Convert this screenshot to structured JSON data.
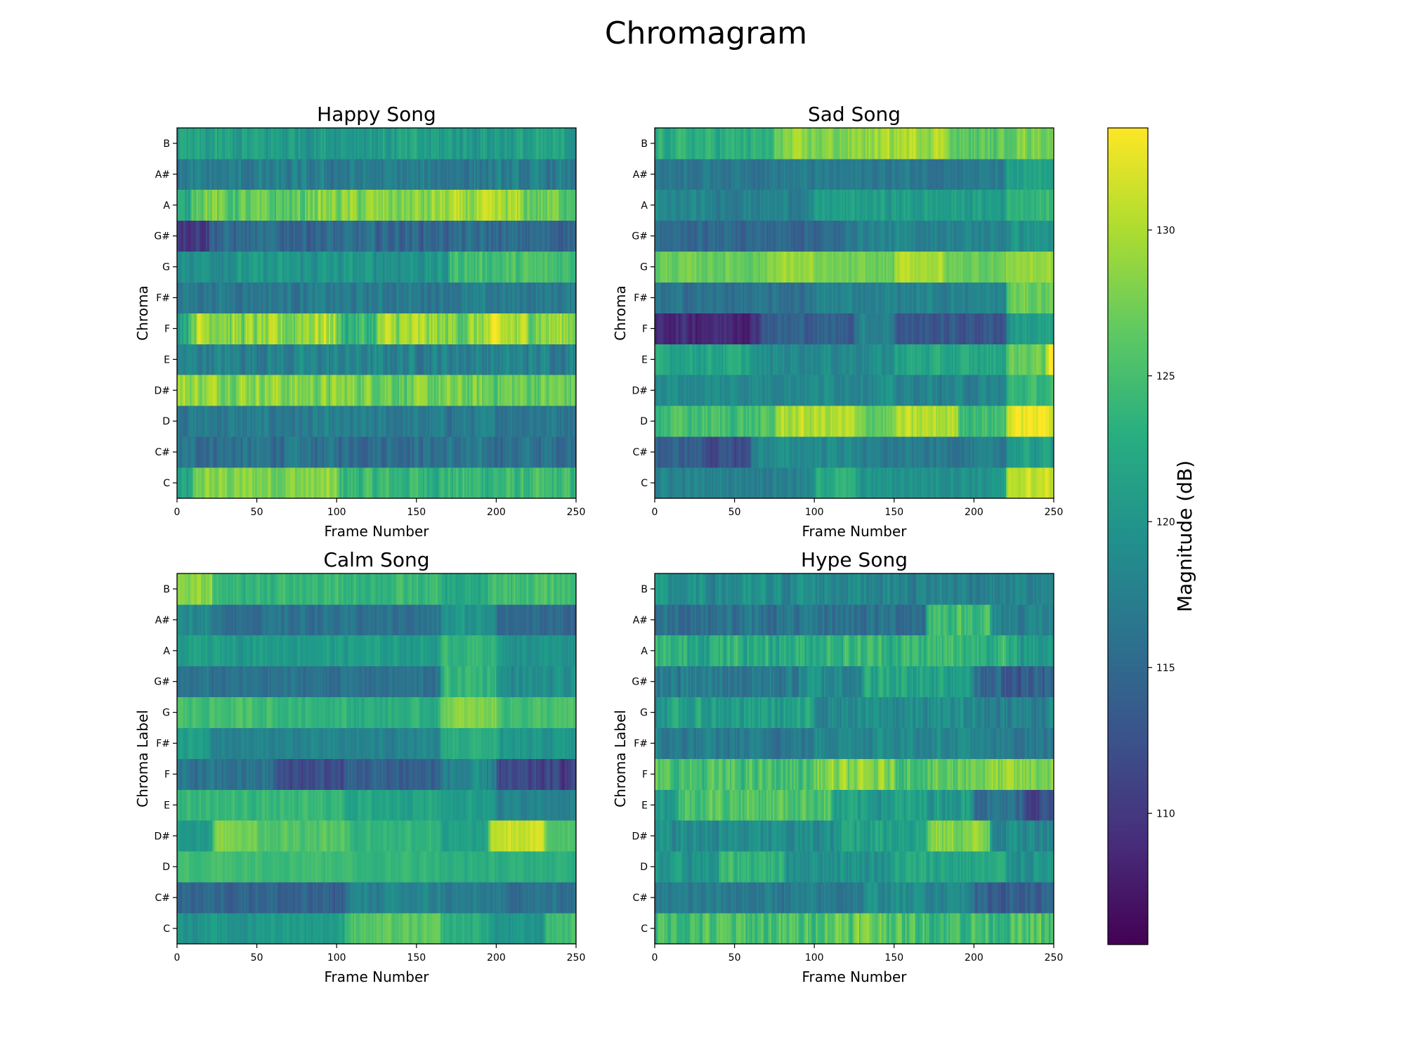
{
  "figure": {
    "title": "Chromagram"
  },
  "colorbar": {
    "label": "Magnitude (dB)",
    "range": [
      105.5,
      133.5
    ],
    "ticks": [
      110,
      115,
      120,
      125,
      130
    ],
    "colormap": "viridis"
  },
  "chart_data": [
    {
      "type": "heatmap",
      "title": "Happy Song",
      "xlabel": "Frame Number",
      "ylabel": "Chroma",
      "x_range": [
        0,
        250
      ],
      "x_ticks": [
        0,
        50,
        100,
        150,
        200,
        250
      ],
      "y_categories": [
        "C",
        "C#",
        "D",
        "D#",
        "E",
        "F",
        "F#",
        "G",
        "G#",
        "A",
        "A#",
        "B"
      ],
      "rows": [
        {
          "label": "C",
          "base": 121,
          "spread": 3.5,
          "segments": [
            [
              10,
              128
            ],
            [
              100,
              124
            ]
          ]
        },
        {
          "label": "C#",
          "base": 116,
          "spread": 3.5,
          "segments": []
        },
        {
          "label": "D",
          "base": 117,
          "spread": 3.0,
          "segments": []
        },
        {
          "label": "D#",
          "base": 120,
          "spread": 4.0,
          "segments": [
            [
              0,
              129
            ],
            [
              65,
              128
            ],
            [
              135,
              127
            ],
            [
              200,
              127
            ]
          ]
        },
        {
          "label": "E",
          "base": 118,
          "spread": 3.5,
          "segments": []
        },
        {
          "label": "F",
          "base": 124,
          "spread": 5.0,
          "segments": [
            [
              8,
              130
            ],
            [
              30,
              128
            ],
            [
              75,
              130
            ],
            [
              100,
              124
            ],
            [
              125,
              129
            ],
            [
              160,
              128
            ],
            [
              190,
              130
            ],
            [
              210,
              129
            ]
          ]
        },
        {
          "label": "F#",
          "base": 117,
          "spread": 3.0,
          "segments": []
        },
        {
          "label": "G",
          "base": 120,
          "spread": 3.0,
          "segments": [
            [
              170,
              125
            ]
          ]
        },
        {
          "label": "G#",
          "base": 116,
          "spread": 3.5,
          "segments": [
            [
              0,
              111
            ],
            [
              20,
              115
            ]
          ]
        },
        {
          "label": "A",
          "base": 121,
          "spread": 4.0,
          "segments": [
            [
              8,
              128
            ],
            [
              25,
              126
            ],
            [
              80,
              128
            ],
            [
              160,
              129
            ],
            [
              215,
              127
            ]
          ]
        },
        {
          "label": "A#",
          "base": 117,
          "spread": 3.5,
          "segments": []
        },
        {
          "label": "B",
          "base": 121,
          "spread": 3.5,
          "segments": []
        }
      ]
    },
    {
      "type": "heatmap",
      "title": "Sad Song",
      "xlabel": "Frame Number",
      "ylabel": "Chroma",
      "x_range": [
        0,
        250
      ],
      "x_ticks": [
        0,
        50,
        100,
        150,
        200,
        250
      ],
      "y_categories": [
        "C",
        "C#",
        "D",
        "D#",
        "E",
        "F",
        "F#",
        "G",
        "G#",
        "A",
        "A#",
        "B"
      ],
      "rows": [
        {
          "label": "C",
          "base": 119,
          "spread": 2.5,
          "segments": [
            [
              0,
              118
            ],
            [
              100,
              123
            ],
            [
              125,
              120
            ],
            [
              220,
              131
            ]
          ]
        },
        {
          "label": "C#",
          "base": 116,
          "spread": 2.5,
          "segments": [
            [
              0,
              114
            ],
            [
              30,
              112
            ],
            [
              60,
              119
            ],
            [
              130,
              117
            ],
            [
              220,
              121
            ]
          ]
        },
        {
          "label": "D",
          "base": 124,
          "spread": 3.0,
          "segments": [
            [
              0,
              125
            ],
            [
              75,
              130
            ],
            [
              125,
              127
            ],
            [
              150,
              130
            ],
            [
              190,
              125
            ],
            [
              220,
              133
            ]
          ]
        },
        {
          "label": "D#",
          "base": 119,
          "spread": 2.5,
          "segments": [
            [
              0,
              119
            ],
            [
              150,
              118
            ],
            [
              220,
              124
            ]
          ]
        },
        {
          "label": "E",
          "base": 121,
          "spread": 2.5,
          "segments": [
            [
              0,
              122
            ],
            [
              60,
              119
            ],
            [
              150,
              122
            ],
            [
              220,
              127
            ],
            [
              245,
              134
            ]
          ]
        },
        {
          "label": "F",
          "base": 113,
          "spread": 2.5,
          "segments": [
            [
              0,
              109
            ],
            [
              65,
              114
            ],
            [
              125,
              118
            ],
            [
              150,
              113
            ],
            [
              220,
              121
            ]
          ]
        },
        {
          "label": "F#",
          "base": 117,
          "spread": 2.5,
          "segments": [
            [
              0,
              116
            ],
            [
              100,
              118
            ],
            [
              220,
              127
            ]
          ]
        },
        {
          "label": "G",
          "base": 127,
          "spread": 2.0,
          "segments": [
            [
              0,
              127
            ],
            [
              70,
              129
            ],
            [
              100,
              127
            ],
            [
              150,
              130
            ],
            [
              180,
              127
            ],
            [
              220,
              129
            ]
          ]
        },
        {
          "label": "G#",
          "base": 117,
          "spread": 2.5,
          "segments": [
            [
              0,
              115
            ],
            [
              120,
              118
            ],
            [
              220,
              120
            ]
          ]
        },
        {
          "label": "A",
          "base": 119,
          "spread": 2.5,
          "segments": [
            [
              0,
              118
            ],
            [
              100,
              121
            ],
            [
              220,
              124
            ]
          ]
        },
        {
          "label": "A#",
          "base": 117,
          "spread": 2.5,
          "segments": [
            [
              0,
              117
            ],
            [
              220,
              121
            ]
          ]
        },
        {
          "label": "B",
          "base": 124,
          "spread": 3.0,
          "segments": [
            [
              0,
              123
            ],
            [
              75,
              128
            ],
            [
              125,
              129
            ],
            [
              150,
              130
            ],
            [
              185,
              126
            ],
            [
              220,
              128
            ]
          ]
        }
      ]
    },
    {
      "type": "heatmap",
      "title": "Calm Song",
      "xlabel": "Frame Number",
      "ylabel": "Chroma Label",
      "x_range": [
        0,
        250
      ],
      "x_ticks": [
        0,
        50,
        100,
        150,
        200,
        250
      ],
      "y_categories": [
        "C",
        "C#",
        "D",
        "D#",
        "E",
        "F",
        "F#",
        "G",
        "G#",
        "A",
        "A#",
        "B"
      ],
      "rows": [
        {
          "label": "C",
          "base": 121,
          "spread": 2.0,
          "segments": [
            [
              0,
              120
            ],
            [
              50,
              121
            ],
            [
              105,
              126
            ],
            [
              165,
              123
            ],
            [
              195,
              120
            ],
            [
              230,
              125
            ]
          ]
        },
        {
          "label": "C#",
          "base": 116,
          "spread": 2.5,
          "segments": [
            [
              0,
              115
            ],
            [
              60,
              114
            ],
            [
              105,
              118
            ],
            [
              165,
              117
            ],
            [
              200,
              116
            ]
          ]
        },
        {
          "label": "D",
          "base": 124,
          "spread": 1.5,
          "segments": [
            [
              0,
              125
            ],
            [
              105,
              124
            ],
            [
              165,
              123
            ]
          ]
        },
        {
          "label": "D#",
          "base": 124,
          "spread": 2.0,
          "segments": [
            [
              0,
              121
            ],
            [
              22,
              128
            ],
            [
              50,
              126
            ],
            [
              105,
              124
            ],
            [
              165,
              121
            ],
            [
              195,
              131
            ],
            [
              230,
              126
            ]
          ]
        },
        {
          "label": "E",
          "base": 123,
          "spread": 2.0,
          "segments": [
            [
              0,
              124
            ],
            [
              105,
              122
            ],
            [
              165,
              121
            ],
            [
              200,
              118
            ]
          ]
        },
        {
          "label": "F",
          "base": 114,
          "spread": 3.0,
          "segments": [
            [
              0,
              116
            ],
            [
              60,
              112
            ],
            [
              105,
              114
            ],
            [
              165,
              118
            ],
            [
              200,
              111
            ]
          ]
        },
        {
          "label": "F#",
          "base": 119,
          "spread": 2.0,
          "segments": [
            [
              0,
              121
            ],
            [
              20,
              118
            ],
            [
              105,
              118
            ],
            [
              165,
              123
            ],
            [
              200,
              120
            ]
          ]
        },
        {
          "label": "G",
          "base": 124,
          "spread": 2.0,
          "segments": [
            [
              0,
              125
            ],
            [
              60,
              124
            ],
            [
              105,
              123
            ],
            [
              165,
              128
            ],
            [
              200,
              125
            ]
          ]
        },
        {
          "label": "G#",
          "base": 117,
          "spread": 2.5,
          "segments": [
            [
              0,
              116
            ],
            [
              105,
              116
            ],
            [
              165,
              124
            ],
            [
              200,
              119
            ]
          ]
        },
        {
          "label": "A",
          "base": 121,
          "spread": 2.0,
          "segments": [
            [
              0,
              121
            ],
            [
              165,
              124
            ],
            [
              200,
              120
            ]
          ]
        },
        {
          "label": "A#",
          "base": 116,
          "spread": 2.5,
          "segments": [
            [
              0,
              119
            ],
            [
              20,
              116
            ],
            [
              165,
              120
            ],
            [
              200,
              115
            ]
          ]
        },
        {
          "label": "B",
          "base": 123,
          "spread": 2.5,
          "segments": [
            [
              0,
              128
            ],
            [
              22,
              124
            ],
            [
              105,
              124
            ],
            [
              165,
              122
            ],
            [
              195,
              125
            ]
          ]
        }
      ]
    },
    {
      "type": "heatmap",
      "title": "Hype Song",
      "xlabel": "Frame Number",
      "ylabel": "Chroma Label",
      "x_range": [
        0,
        250
      ],
      "x_ticks": [
        0,
        50,
        100,
        150,
        200,
        250
      ],
      "y_categories": [
        "C",
        "C#",
        "D",
        "D#",
        "E",
        "F",
        "F#",
        "G",
        "G#",
        "A",
        "A#",
        "B"
      ],
      "rows": [
        {
          "label": "C",
          "base": 125,
          "spread": 4.5,
          "segments": [
            [
              0,
              125
            ],
            [
              100,
              127
            ],
            [
              150,
              125
            ]
          ]
        },
        {
          "label": "C#",
          "base": 117,
          "spread": 3.0,
          "segments": [
            [
              0,
              117
            ],
            [
              130,
              119
            ],
            [
              200,
              114
            ]
          ]
        },
        {
          "label": "D",
          "base": 121,
          "spread": 3.0,
          "segments": [
            [
              0,
              120
            ],
            [
              40,
              124
            ],
            [
              80,
              120
            ],
            [
              150,
              122
            ],
            [
              220,
              120
            ]
          ]
        },
        {
          "label": "D#",
          "base": 120,
          "spread": 3.5,
          "segments": [
            [
              0,
              119
            ],
            [
              115,
              122
            ],
            [
              170,
              128
            ],
            [
              210,
              119
            ]
          ]
        },
        {
          "label": "E",
          "base": 121,
          "spread": 3.5,
          "segments": [
            [
              0,
              121
            ],
            [
              15,
              126
            ],
            [
              110,
              121
            ],
            [
              200,
              116
            ],
            [
              230,
              112
            ]
          ]
        },
        {
          "label": "F",
          "base": 126,
          "spread": 4.0,
          "segments": [
            [
              0,
              125
            ],
            [
              100,
              128
            ],
            [
              150,
              126
            ],
            [
              190,
              128
            ]
          ]
        },
        {
          "label": "F#",
          "base": 118,
          "spread": 3.0,
          "segments": [
            [
              0,
              117
            ],
            [
              100,
              119
            ],
            [
              200,
              117
            ]
          ]
        },
        {
          "label": "G",
          "base": 120,
          "spread": 3.5,
          "segments": [
            [
              0,
              121
            ],
            [
              100,
              119
            ],
            [
              200,
              118
            ]
          ]
        },
        {
          "label": "G#",
          "base": 118,
          "spread": 4.0,
          "segments": [
            [
              0,
              117
            ],
            [
              90,
              119
            ],
            [
              130,
              122
            ],
            [
              200,
              114
            ]
          ]
        },
        {
          "label": "A",
          "base": 123,
          "spread": 4.0,
          "segments": [
            [
              0,
              123
            ],
            [
              100,
              124
            ],
            [
              220,
              121
            ]
          ]
        },
        {
          "label": "A#",
          "base": 118,
          "spread": 3.5,
          "segments": [
            [
              0,
              116
            ],
            [
              170,
              125
            ],
            [
              210,
              118
            ]
          ]
        },
        {
          "label": "B",
          "base": 118,
          "spread": 3.5,
          "segments": [
            [
              0,
              119
            ],
            [
              150,
              118
            ]
          ]
        }
      ]
    }
  ]
}
